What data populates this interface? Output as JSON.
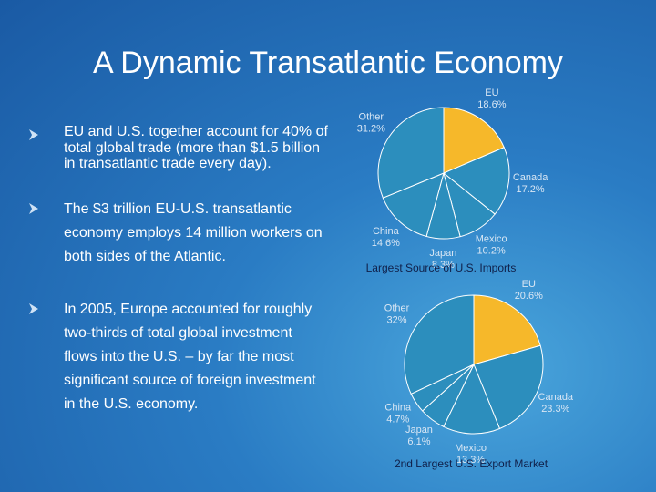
{
  "title": "A Dynamic Transatlantic Economy",
  "bullets": [
    "EU and U.S. together account for 40% of total global trade (more than $1.5 billion in transatlantic trade every day).",
    "The $3 trillion EU-U.S. transatlantic economy employs 14 million workers on both sides of the Atlantic.",
    "In 2005, Europe accounted for roughly two-thirds of total global investment flows into the U.S. – by far the most significant source of foreign investment in the U.S. economy."
  ],
  "chart_data": [
    {
      "type": "pie",
      "title": "Largest Source of U.S. Imports",
      "categories": [
        "EU",
        "Canada",
        "Mexico",
        "Japan",
        "China",
        "Other"
      ],
      "values": [
        18.6,
        17.2,
        10.2,
        8.3,
        14.6,
        31.2
      ],
      "value_labels": [
        "18.6%",
        "17.2%",
        "10.2%",
        "8.3%",
        "14.6%",
        "31.2%"
      ],
      "colors": [
        "#f6b82a",
        "#2c8ebd",
        "#2c8ebd",
        "#2c8ebd",
        "#2c8ebd",
        "#2c8ebd"
      ]
    },
    {
      "type": "pie",
      "title": "2nd Largest U.S. Export Market",
      "categories": [
        "EU",
        "Canada",
        "Mexico",
        "Japan",
        "China",
        "Other"
      ],
      "values": [
        20.6,
        23.3,
        13.3,
        6.1,
        4.7,
        32
      ],
      "value_labels": [
        "20.6%",
        "23.3%",
        "13.3%",
        "6.1%",
        "4.7%",
        "32%"
      ],
      "colors": [
        "#f6b82a",
        "#2c8ebd",
        "#2c8ebd",
        "#2c8ebd",
        "#2c8ebd",
        "#2c8ebd"
      ]
    }
  ]
}
